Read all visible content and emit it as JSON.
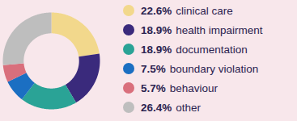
{
  "chart_data": {
    "type": "pie",
    "categories": [
      "clinical care",
      "health impairment",
      "documentation",
      "boundary violation",
      "behaviour",
      "other"
    ],
    "values": [
      22.6,
      18.9,
      18.9,
      7.5,
      5.7,
      26.4
    ],
    "value_labels": [
      "22.6%",
      "18.9%",
      "18.9%",
      "7.5%",
      "5.7%",
      "26.4%"
    ],
    "colors": [
      "#f2d88c",
      "#3a2a7c",
      "#2aa396",
      "#1b6fc2",
      "#d96f7c",
      "#bebebe"
    ],
    "legend": "right"
  }
}
